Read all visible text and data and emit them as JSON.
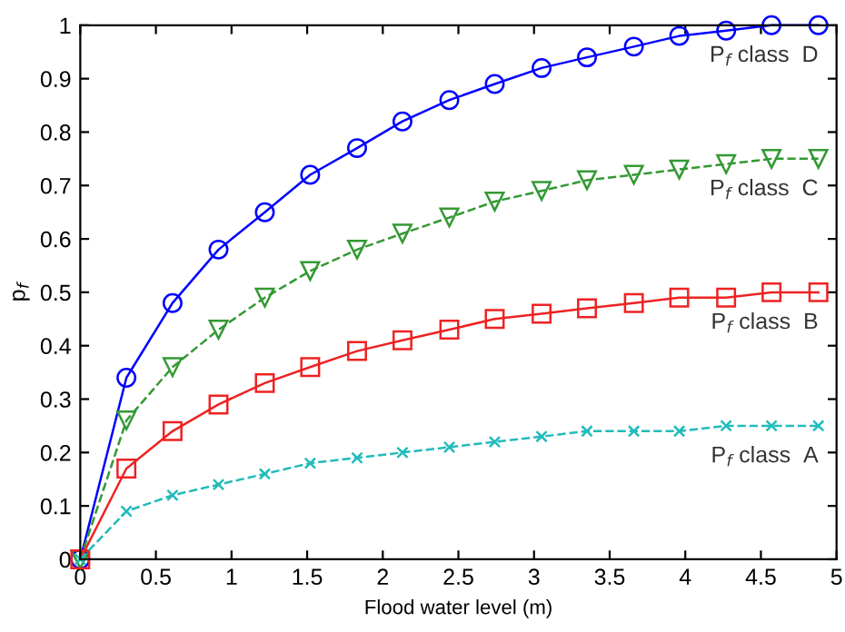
{
  "chart_data": {
    "type": "line",
    "xlabel": "Flood water level (m)",
    "ylabel": "p$_{f}$",
    "x": [
      0,
      0.305,
      0.61,
      0.914,
      1.22,
      1.52,
      1.83,
      2.13,
      2.44,
      2.74,
      3.05,
      3.35,
      3.66,
      3.96,
      4.27,
      4.57,
      4.88
    ],
    "xlim": [
      0,
      5
    ],
    "xticks": [
      0,
      0.5,
      1,
      1.5,
      2,
      2.5,
      3,
      3.5,
      4,
      4.5,
      5
    ],
    "ylim": [
      0,
      1
    ],
    "yticks": [
      0,
      0.1,
      0.2,
      0.3,
      0.4,
      0.5,
      0.6,
      0.7,
      0.8,
      0.9,
      1
    ],
    "grid": false,
    "legend": false,
    "series": [
      {
        "name": "P$_{f}$ class  D",
        "color": "#0000ff",
        "marker": "circle",
        "line_style": "solid",
        "values": [
          0,
          0.34,
          0.48,
          0.58,
          0.65,
          0.72,
          0.77,
          0.82,
          0.86,
          0.89,
          0.92,
          0.94,
          0.96,
          0.98,
          0.99,
          1.0,
          1.0
        ]
      },
      {
        "name": "P$_{f}$ class  C",
        "color": "#339933",
        "marker": "triangle",
        "line_style": "dashed",
        "values": [
          0,
          0.26,
          0.36,
          0.43,
          0.49,
          0.54,
          0.58,
          0.61,
          0.64,
          0.67,
          0.69,
          0.71,
          0.72,
          0.73,
          0.74,
          0.75,
          0.75
        ]
      },
      {
        "name": "P$_{f}$ class  B",
        "color": "#ee2222",
        "marker": "square",
        "line_style": "solid",
        "values": [
          0,
          0.17,
          0.24,
          0.29,
          0.33,
          0.36,
          0.39,
          0.41,
          0.43,
          0.45,
          0.46,
          0.47,
          0.48,
          0.49,
          0.49,
          0.5,
          0.5
        ]
      },
      {
        "name": "P$_{f}$ class  A",
        "color": "#22bbbb",
        "marker": "cross",
        "line_style": "dashed",
        "values": [
          0,
          0.09,
          0.12,
          0.14,
          0.16,
          0.18,
          0.19,
          0.2,
          0.21,
          0.22,
          0.23,
          0.24,
          0.24,
          0.24,
          0.25,
          0.25,
          0.25
        ]
      }
    ]
  }
}
